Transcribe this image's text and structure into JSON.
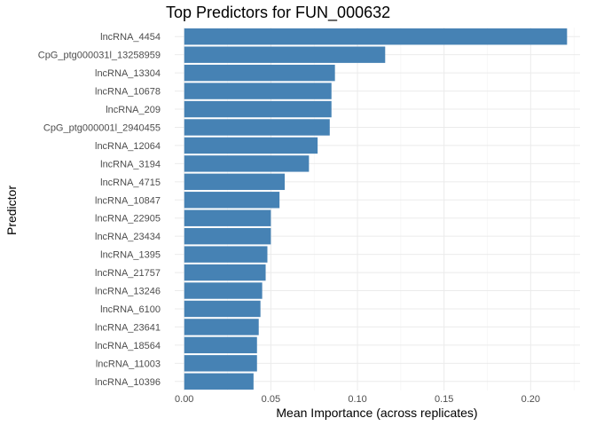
{
  "chart_data": {
    "type": "bar",
    "orientation": "horizontal",
    "title": "Top Predictors for FUN_000632",
    "xlabel": "Mean Importance (across replicates)",
    "ylabel": "Predictor",
    "xlim": [
      -0.0055,
      0.2285
    ],
    "x_ticks": [
      0.0,
      0.05,
      0.1,
      0.15,
      0.2
    ],
    "x_tick_labels": [
      "0.00",
      "0.05",
      "0.10",
      "0.15",
      "0.20"
    ],
    "grid": true,
    "bar_color": "#4682b4",
    "categories": [
      "lncRNA_4454",
      "CpG_ptg000031l_13258959",
      "lncRNA_13304",
      "lncRNA_10678",
      "lncRNA_209",
      "CpG_ptg000001l_2940455",
      "lncRNA_12064",
      "lncRNA_3194",
      "lncRNA_4715",
      "lncRNA_10847",
      "lncRNA_22905",
      "lncRNA_23434",
      "lncRNA_1395",
      "lncRNA_21757",
      "lncRNA_13246",
      "lncRNA_6100",
      "lncRNA_23641",
      "lncRNA_18564",
      "lncRNA_11003",
      "lncRNA_10396"
    ],
    "values": [
      0.221,
      0.116,
      0.087,
      0.085,
      0.085,
      0.084,
      0.077,
      0.072,
      0.058,
      0.055,
      0.05,
      0.05,
      0.048,
      0.047,
      0.045,
      0.044,
      0.043,
      0.042,
      0.042,
      0.04
    ]
  }
}
